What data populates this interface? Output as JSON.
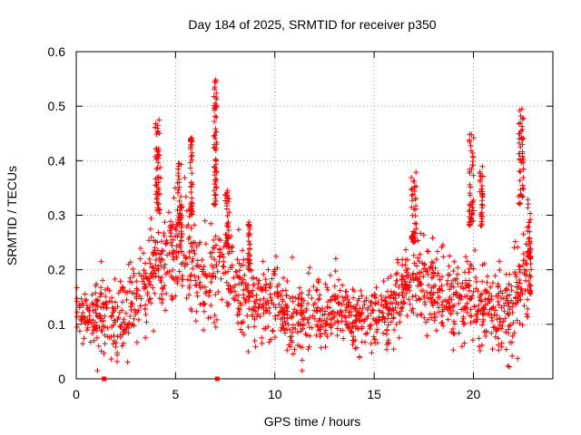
{
  "chart_data": {
    "type": "scatter",
    "title": "Day 184 of 2025, SRMTID for receiver p350",
    "xlabel": "GPS time / hours",
    "ylabel": "SRMTID / TECUs",
    "xlim": [
      0,
      24
    ],
    "ylim": [
      0,
      0.6
    ],
    "xticks": [
      0,
      5,
      10,
      15,
      20
    ],
    "yticks": [
      0,
      0.1,
      0.2,
      0.3,
      0.4,
      0.5,
      0.6
    ],
    "ytick_labels": [
      "0",
      "0.1",
      "0.2",
      "0.3",
      "0.4",
      "0.5",
      "0.6"
    ],
    "grid": true,
    "marker": "plus",
    "color": "#ff0000",
    "trend": [
      {
        "x": 0.0,
        "y": 0.11,
        "s": 0.03
      },
      {
        "x": 1.0,
        "y": 0.12,
        "s": 0.035
      },
      {
        "x": 2.0,
        "y": 0.1,
        "s": 0.035
      },
      {
        "x": 3.0,
        "y": 0.14,
        "s": 0.04
      },
      {
        "x": 3.5,
        "y": 0.17,
        "s": 0.04
      },
      {
        "x": 4.0,
        "y": 0.21,
        "s": 0.045
      },
      {
        "x": 4.5,
        "y": 0.23,
        "s": 0.045
      },
      {
        "x": 5.0,
        "y": 0.24,
        "s": 0.05
      },
      {
        "x": 5.5,
        "y": 0.24,
        "s": 0.05
      },
      {
        "x": 6.0,
        "y": 0.2,
        "s": 0.05
      },
      {
        "x": 6.5,
        "y": 0.17,
        "s": 0.045
      },
      {
        "x": 7.0,
        "y": 0.2,
        "s": 0.05
      },
      {
        "x": 7.5,
        "y": 0.22,
        "s": 0.045
      },
      {
        "x": 8.0,
        "y": 0.17,
        "s": 0.04
      },
      {
        "x": 9.0,
        "y": 0.14,
        "s": 0.035
      },
      {
        "x": 10.0,
        "y": 0.14,
        "s": 0.035
      },
      {
        "x": 11.0,
        "y": 0.1,
        "s": 0.03
      },
      {
        "x": 12.0,
        "y": 0.12,
        "s": 0.035
      },
      {
        "x": 13.0,
        "y": 0.13,
        "s": 0.035
      },
      {
        "x": 14.0,
        "y": 0.11,
        "s": 0.03
      },
      {
        "x": 15.0,
        "y": 0.11,
        "s": 0.03
      },
      {
        "x": 16.0,
        "y": 0.14,
        "s": 0.035
      },
      {
        "x": 17.0,
        "y": 0.19,
        "s": 0.04
      },
      {
        "x": 18.0,
        "y": 0.17,
        "s": 0.04
      },
      {
        "x": 19.0,
        "y": 0.15,
        "s": 0.035
      },
      {
        "x": 20.0,
        "y": 0.15,
        "s": 0.04
      },
      {
        "x": 21.0,
        "y": 0.12,
        "s": 0.035
      },
      {
        "x": 22.0,
        "y": 0.14,
        "s": 0.04
      },
      {
        "x": 23.0,
        "y": 0.2,
        "s": 0.04
      }
    ],
    "spikes": [
      {
        "x": 4.1,
        "w": 0.25,
        "y": [
          0.3,
          0.48
        ]
      },
      {
        "x": 5.2,
        "w": 0.25,
        "y": [
          0.28,
          0.4
        ]
      },
      {
        "x": 5.8,
        "w": 0.1,
        "y": [
          0.3,
          0.45
        ]
      },
      {
        "x": 7.0,
        "w": 0.15,
        "y": [
          0.3,
          0.55
        ]
      },
      {
        "x": 7.6,
        "w": 0.2,
        "y": [
          0.24,
          0.35
        ]
      },
      {
        "x": 8.7,
        "w": 0.1,
        "y": [
          0.2,
          0.29
        ]
      },
      {
        "x": 17.0,
        "w": 0.25,
        "y": [
          0.25,
          0.38
        ]
      },
      {
        "x": 19.9,
        "w": 0.25,
        "y": [
          0.28,
          0.45
        ]
      },
      {
        "x": 20.4,
        "w": 0.15,
        "y": [
          0.28,
          0.39
        ]
      },
      {
        "x": 22.4,
        "w": 0.25,
        "y": [
          0.32,
          0.5
        ]
      },
      {
        "x": 22.8,
        "w": 0.15,
        "y": [
          0.22,
          0.33
        ]
      }
    ],
    "special_points": [
      {
        "x": 1.4,
        "y": 0.0
      },
      {
        "x": 7.1,
        "y": 0.0
      }
    ],
    "point_count": 1700,
    "seed": 184
  }
}
